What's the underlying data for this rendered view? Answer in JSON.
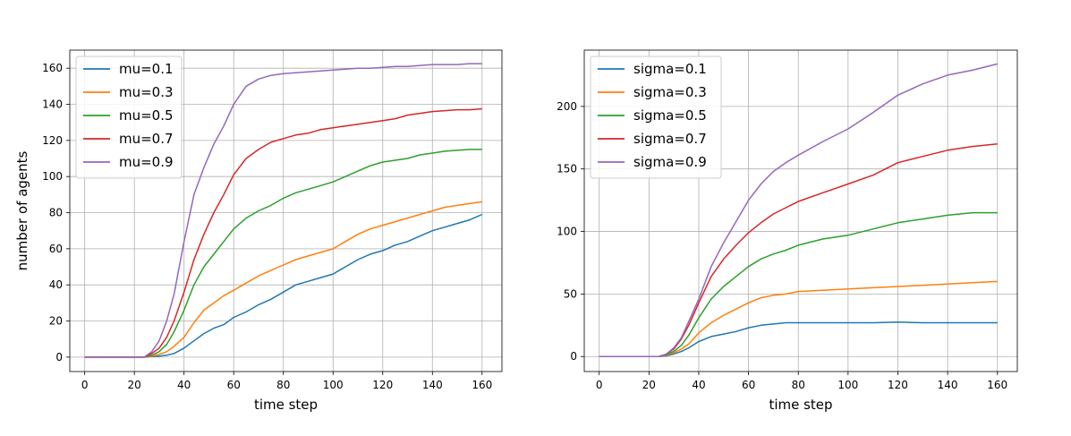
{
  "chart_data": [
    {
      "type": "line",
      "title": "",
      "xlabel": "time step",
      "ylabel": "number of agents",
      "xlim": [
        -6,
        168
      ],
      "ylim": [
        -8,
        170
      ],
      "xticks": [
        0,
        20,
        40,
        60,
        80,
        100,
        120,
        140,
        160
      ],
      "yticks": [
        0,
        20,
        40,
        60,
        80,
        100,
        120,
        140,
        160
      ],
      "grid": true,
      "legend_position": "upper-left",
      "series": [
        {
          "name": "mu=0.1",
          "color": "#1f77b4",
          "x": [
            0,
            24,
            27,
            30,
            33,
            36,
            40,
            44,
            48,
            52,
            56,
            60,
            65,
            70,
            75,
            80,
            85,
            90,
            95,
            100,
            105,
            110,
            115,
            120,
            125,
            130,
            135,
            140,
            145,
            150,
            155,
            160
          ],
          "y": [
            0,
            0,
            0.3,
            0.6,
            1,
            2,
            5,
            9,
            13,
            16,
            18,
            22,
            25,
            29,
            32,
            36,
            40,
            42,
            44,
            46,
            50,
            54,
            57,
            59,
            62,
            64,
            67,
            70,
            72,
            74,
            76,
            79
          ]
        },
        {
          "name": "mu=0.3",
          "color": "#ff7f0e",
          "x": [
            0,
            24,
            27,
            30,
            33,
            36,
            40,
            44,
            48,
            52,
            56,
            60,
            65,
            70,
            75,
            80,
            85,
            90,
            95,
            100,
            105,
            110,
            115,
            120,
            125,
            130,
            135,
            140,
            145,
            150,
            155,
            160
          ],
          "y": [
            0,
            0,
            0.5,
            1.5,
            3,
            6,
            11,
            19,
            26,
            30,
            34,
            37,
            41,
            45,
            48,
            51,
            54,
            56,
            58,
            60,
            64,
            68,
            71,
            73,
            75,
            77,
            79,
            81,
            83,
            84,
            85,
            86
          ]
        },
        {
          "name": "mu=0.5",
          "color": "#2ca02c",
          "x": [
            0,
            24,
            27,
            30,
            33,
            36,
            40,
            44,
            48,
            52,
            56,
            60,
            65,
            70,
            75,
            80,
            85,
            90,
            95,
            100,
            105,
            110,
            115,
            120,
            125,
            130,
            135,
            140,
            145,
            150,
            155,
            160
          ],
          "y": [
            0,
            0,
            1,
            3,
            7,
            14,
            26,
            40,
            50,
            57,
            64,
            71,
            77,
            81,
            84,
            88,
            91,
            93,
            95,
            97,
            100,
            103,
            106,
            108,
            109,
            110,
            112,
            113,
            114,
            114.5,
            115,
            115
          ]
        },
        {
          "name": "mu=0.7",
          "color": "#d62728",
          "x": [
            0,
            24,
            27,
            30,
            33,
            36,
            40,
            44,
            48,
            52,
            56,
            60,
            65,
            70,
            75,
            80,
            85,
            90,
            95,
            100,
            105,
            110,
            115,
            120,
            125,
            130,
            135,
            140,
            145,
            150,
            155,
            160
          ],
          "y": [
            0,
            0,
            2,
            5,
            11,
            20,
            36,
            54,
            68,
            80,
            90,
            101,
            110,
            115,
            119,
            121,
            123,
            124,
            126,
            127,
            128,
            129,
            130,
            131,
            132,
            134,
            135,
            136,
            136.5,
            137,
            137,
            137.5
          ]
        },
        {
          "name": "mu=0.9",
          "color": "#9467bd",
          "x": [
            0,
            24,
            27,
            30,
            33,
            36,
            40,
            44,
            48,
            52,
            56,
            60,
            65,
            70,
            75,
            80,
            85,
            90,
            95,
            100,
            105,
            110,
            115,
            120,
            125,
            130,
            135,
            140,
            145,
            150,
            155,
            160
          ],
          "y": [
            0,
            0,
            3,
            9,
            20,
            35,
            64,
            90,
            105,
            118,
            128,
            140,
            150,
            154,
            156,
            157,
            157.5,
            158,
            158.5,
            159,
            159.5,
            160,
            160,
            160.5,
            161,
            161,
            161.5,
            162,
            162,
            162,
            162.5,
            162.5
          ]
        }
      ]
    },
    {
      "type": "line",
      "title": "",
      "xlabel": "time step",
      "ylabel": "",
      "xlim": [
        -6,
        168
      ],
      "ylim": [
        -12,
        245
      ],
      "xticks": [
        0,
        20,
        40,
        60,
        80,
        100,
        120,
        140,
        160
      ],
      "yticks": [
        0,
        50,
        100,
        150,
        200
      ],
      "grid": true,
      "legend_position": "upper-left",
      "series": [
        {
          "name": "sigma=0.1",
          "color": "#1f77b4",
          "x": [
            0,
            24,
            27,
            30,
            33,
            36,
            40,
            45,
            50,
            55,
            60,
            65,
            70,
            75,
            80,
            90,
            100,
            110,
            120,
            130,
            140,
            150,
            160
          ],
          "y": [
            0,
            0,
            0.5,
            2,
            4,
            7,
            12,
            16,
            18,
            20,
            23,
            25,
            26,
            27,
            27,
            27,
            27,
            27,
            27.5,
            27,
            27,
            27,
            27
          ]
        },
        {
          "name": "sigma=0.3",
          "color": "#ff7f0e",
          "x": [
            0,
            24,
            27,
            30,
            33,
            36,
            40,
            45,
            50,
            55,
            60,
            65,
            70,
            75,
            80,
            90,
            100,
            110,
            120,
            130,
            140,
            150,
            160
          ],
          "y": [
            0,
            0,
            1,
            3,
            6,
            10,
            19,
            27,
            33,
            38,
            43,
            47,
            49,
            50,
            52,
            53,
            54,
            55,
            56,
            57,
            58,
            59,
            60
          ]
        },
        {
          "name": "sigma=0.5",
          "color": "#2ca02c",
          "x": [
            0,
            24,
            27,
            30,
            33,
            36,
            40,
            45,
            50,
            55,
            60,
            65,
            70,
            75,
            80,
            90,
            100,
            110,
            120,
            130,
            140,
            150,
            160
          ],
          "y": [
            0,
            0,
            1.5,
            4,
            9,
            17,
            31,
            46,
            56,
            64,
            72,
            78,
            82,
            85,
            89,
            94,
            97,
            102,
            107,
            110,
            113,
            115,
            115
          ]
        },
        {
          "name": "sigma=0.7",
          "color": "#d62728",
          "x": [
            0,
            24,
            27,
            30,
            33,
            36,
            40,
            45,
            50,
            55,
            60,
            65,
            70,
            75,
            80,
            90,
            100,
            110,
            120,
            130,
            140,
            150,
            160
          ],
          "y": [
            0,
            0,
            2,
            6,
            14,
            25,
            43,
            64,
            78,
            89,
            99,
            107,
            114,
            119,
            124,
            131,
            138,
            145,
            155,
            160,
            165,
            168,
            170
          ]
        },
        {
          "name": "sigma=0.9",
          "color": "#9467bd",
          "x": [
            0,
            24,
            27,
            30,
            33,
            36,
            40,
            45,
            50,
            55,
            60,
            65,
            70,
            75,
            80,
            90,
            100,
            110,
            120,
            130,
            140,
            150,
            160
          ],
          "y": [
            0,
            0,
            2,
            7,
            15,
            28,
            46,
            72,
            91,
            108,
            125,
            138,
            148,
            155,
            161,
            172,
            182,
            195,
            209,
            218,
            225,
            229,
            234
          ]
        }
      ]
    }
  ]
}
